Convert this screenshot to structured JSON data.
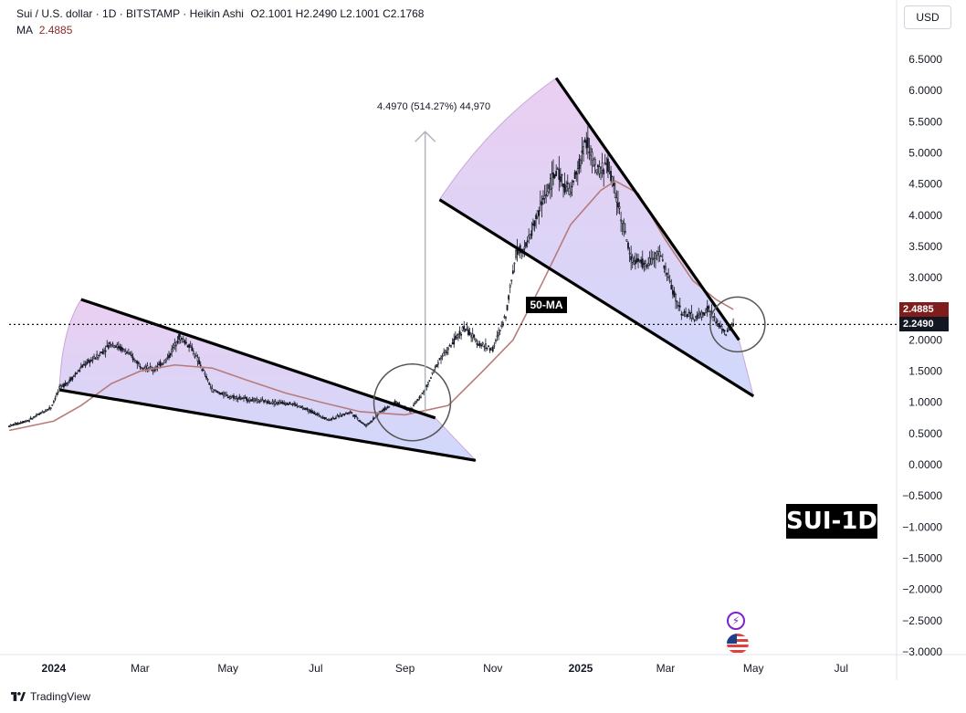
{
  "header": {
    "symbol_line": "Sui / U.S. dollar · 1D · BITSTAMP · Heikin Ashi",
    "ohlc": "O2.1001  H2.2490  L2.1001  C2.1768",
    "ma_label": "MA",
    "ma_value": "2.4885"
  },
  "currency_button": "USD",
  "footer": {
    "brand": "TradingView"
  },
  "annotations": {
    "ma_tag": "50-MA",
    "title_tag": "SUI-1D",
    "measure_text": "4.4970 (514.27%) 44,970"
  },
  "badges": {
    "ma_value": "2.4885",
    "last_price": "2.2490",
    "ma_color": "#7f1d1d",
    "price_color": "#131722"
  },
  "colors": {
    "candle": "#131722",
    "ma_line": "#b87b7b",
    "wedge_fill_top": "#e7c6ee",
    "wedge_fill_bottom": "#c7d2fb",
    "trendline": "#000000",
    "measure_arrow": "#b2b5be"
  },
  "chart_data": {
    "type": "candlestick",
    "y_axis": {
      "min": -3.0,
      "max": 6.5,
      "ticks": [
        "6.5000",
        "6.0000",
        "5.5000",
        "5.0000",
        "4.5000",
        "4.0000",
        "3.5000",
        "3.0000",
        "2.5000",
        "2.0000",
        "1.5000",
        "1.0000",
        "0.5000",
        "0.0000",
        "−0.5000",
        "−1.0000",
        "−1.5000",
        "−2.0000",
        "−2.5000",
        "−3.0000"
      ]
    },
    "x_axis": {
      "ticks": [
        {
          "label": "2024",
          "bold": true,
          "date": "2024-01-01"
        },
        {
          "label": "Mar",
          "bold": false,
          "date": "2024-03-01"
        },
        {
          "label": "May",
          "bold": false,
          "date": "2024-05-01"
        },
        {
          "label": "Jul",
          "bold": false,
          "date": "2024-07-01"
        },
        {
          "label": "Sep",
          "bold": false,
          "date": "2024-09-01"
        },
        {
          "label": "Nov",
          "bold": false,
          "date": "2024-11-01"
        },
        {
          "label": "2025",
          "bold": true,
          "date": "2025-01-01"
        },
        {
          "label": "Mar",
          "bold": false,
          "date": "2025-03-01"
        },
        {
          "label": "May",
          "bold": false,
          "date": "2025-05-01"
        },
        {
          "label": "Jul",
          "bold": false,
          "date": "2025-07-01"
        }
      ]
    },
    "price_path": [
      [
        "2023-12-01",
        0.62
      ],
      [
        "2023-12-15",
        0.72
      ],
      [
        "2023-12-30",
        0.92
      ],
      [
        "2024-01-05",
        1.22
      ],
      [
        "2024-01-12",
        1.35
      ],
      [
        "2024-01-22",
        1.6
      ],
      [
        "2024-02-01",
        1.75
      ],
      [
        "2024-02-10",
        1.95
      ],
      [
        "2024-02-20",
        1.82
      ],
      [
        "2024-03-01",
        1.6
      ],
      [
        "2024-03-10",
        1.52
      ],
      [
        "2024-03-20",
        1.7
      ],
      [
        "2024-03-28",
        2.05
      ],
      [
        "2024-04-05",
        1.9
      ],
      [
        "2024-04-13",
        1.55
      ],
      [
        "2024-04-20",
        1.2
      ],
      [
        "2024-05-01",
        1.1
      ],
      [
        "2024-05-15",
        1.05
      ],
      [
        "2024-06-01",
        1.0
      ],
      [
        "2024-06-15",
        0.98
      ],
      [
        "2024-07-01",
        0.82
      ],
      [
        "2024-07-10",
        0.72
      ],
      [
        "2024-07-25",
        0.85
      ],
      [
        "2024-08-05",
        0.62
      ],
      [
        "2024-08-15",
        0.85
      ],
      [
        "2024-08-25",
        1.0
      ],
      [
        "2024-09-05",
        0.88
      ],
      [
        "2024-09-15",
        1.2
      ],
      [
        "2024-09-25",
        1.7
      ],
      [
        "2024-10-01",
        1.85
      ],
      [
        "2024-10-12",
        2.2
      ],
      [
        "2024-10-22",
        1.95
      ],
      [
        "2024-11-01",
        1.85
      ],
      [
        "2024-11-10",
        2.4
      ],
      [
        "2024-11-17",
        3.4
      ],
      [
        "2024-11-25",
        3.55
      ],
      [
        "2024-12-05",
        4.2
      ],
      [
        "2024-12-15",
        4.7
      ],
      [
        "2024-12-25",
        4.35
      ],
      [
        "2025-01-05",
        5.2
      ],
      [
        "2025-01-12",
        4.7
      ],
      [
        "2025-01-20",
        4.8
      ],
      [
        "2025-01-28",
        4.1
      ],
      [
        "2025-02-05",
        3.3
      ],
      [
        "2025-02-15",
        3.2
      ],
      [
        "2025-02-25",
        3.4
      ],
      [
        "2025-03-05",
        2.85
      ],
      [
        "2025-03-12",
        2.45
      ],
      [
        "2025-03-22",
        2.35
      ],
      [
        "2025-03-31",
        2.5
      ],
      [
        "2025-04-05",
        2.3
      ],
      [
        "2025-04-12",
        2.1
      ],
      [
        "2025-04-17",
        2.25
      ]
    ],
    "ma_path": [
      [
        "2023-12-01",
        0.55
      ],
      [
        "2024-01-01",
        0.7
      ],
      [
        "2024-01-20",
        0.95
      ],
      [
        "2024-02-10",
        1.3
      ],
      [
        "2024-03-01",
        1.5
      ],
      [
        "2024-03-25",
        1.6
      ],
      [
        "2024-04-20",
        1.55
      ],
      [
        "2024-05-15",
        1.35
      ],
      [
        "2024-06-10",
        1.15
      ],
      [
        "2024-07-05",
        1.0
      ],
      [
        "2024-08-01",
        0.85
      ],
      [
        "2024-09-01",
        0.8
      ],
      [
        "2024-10-01",
        0.95
      ],
      [
        "2024-10-25",
        1.5
      ],
      [
        "2024-11-15",
        2.0
      ],
      [
        "2024-12-05",
        2.9
      ],
      [
        "2024-12-25",
        3.85
      ],
      [
        "2025-01-15",
        4.4
      ],
      [
        "2025-01-25",
        4.55
      ],
      [
        "2025-02-10",
        4.35
      ],
      [
        "2025-03-01",
        3.6
      ],
      [
        "2025-03-20",
        2.95
      ],
      [
        "2025-04-05",
        2.65
      ],
      [
        "2025-04-17",
        2.49
      ]
    ],
    "wedges": [
      {
        "name": "wedge-2024",
        "upper": [
          [
            "2024-01-20",
            2.65
          ],
          [
            "2024-09-22",
            0.75
          ]
        ],
        "lower": [
          [
            "2024-01-05",
            1.2
          ],
          [
            "2024-10-15",
            0.07
          ]
        ],
        "apex": [
          "2024-10-20",
          0.07
        ]
      },
      {
        "name": "wedge-2025",
        "upper": [
          [
            "2024-12-15",
            6.2
          ],
          [
            "2025-04-21",
            2.0
          ]
        ],
        "lower": [
          [
            "2024-09-25",
            4.25
          ],
          [
            "2025-05-01",
            1.1
          ]
        ],
        "apex": [
          "2025-05-01",
          1.1
        ]
      }
    ],
    "circles": [
      {
        "name": "breakout-circle",
        "center": [
          "2024-09-06",
          1.0
        ]
      },
      {
        "name": "current-circle",
        "center": [
          "2025-04-20",
          2.25
        ]
      }
    ],
    "measure_arrow": {
      "from": [
        "2024-09-15",
        0.84
      ],
      "to": [
        "2024-09-15",
        5.34
      ]
    }
  }
}
